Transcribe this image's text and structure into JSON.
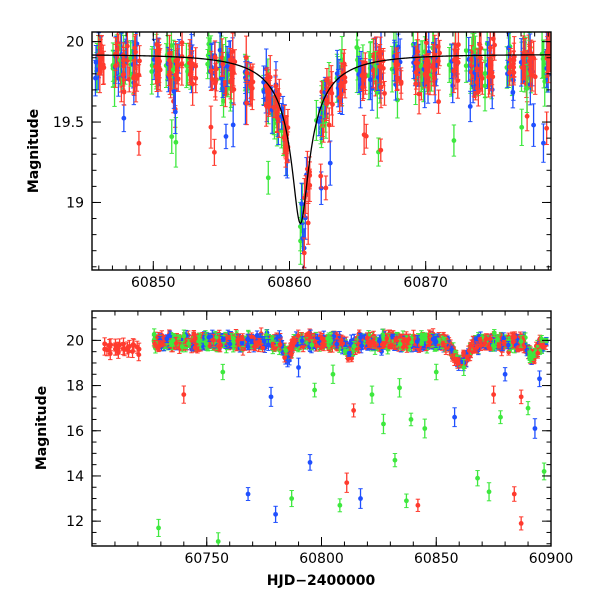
{
  "xlabel": "HJD−2400000",
  "colors": {
    "red": "#ff3a2e",
    "green": "#3ee83e",
    "blue": "#1f4fff",
    "curve": "#000000"
  },
  "chart_data": [
    {
      "type": "scatter",
      "ylabel": "Magnitude",
      "xlim": [
        60845.5,
        60879.2
      ],
      "ylim": [
        20.06,
        18.58
      ],
      "y_inverted": true,
      "xticks": [
        60850,
        60860,
        60870
      ],
      "yticks": [
        19,
        19.5,
        20
      ],
      "ytick_labels": [
        "19",
        "19.5",
        "20"
      ],
      "model_curve": {
        "t0": 60860.8,
        "base": 19.92,
        "amp": 1.05,
        "u0": 0.1,
        "tE": 6.0
      },
      "series": [
        {
          "color_key": "red"
        },
        {
          "color_key": "green"
        },
        {
          "color_key": "blue"
        }
      ]
    },
    {
      "type": "scatter",
      "ylabel": "Magnitude",
      "xlim": [
        60700,
        60900
      ],
      "ylim": [
        21.3,
        10.9
      ],
      "y_inverted": true,
      "xticks": [
        60750,
        60800,
        60850,
        60900
      ],
      "yticks": [
        12,
        14,
        16,
        18,
        20
      ],
      "outliers": [
        {
          "x": 60729,
          "y": 11.7,
          "c": "green"
        },
        {
          "x": 60755,
          "y": 11.1,
          "c": "green"
        },
        {
          "x": 60768,
          "y": 13.2,
          "c": "blue"
        },
        {
          "x": 60780,
          "y": 12.3,
          "c": "blue"
        },
        {
          "x": 60787,
          "y": 13.0,
          "c": "green"
        },
        {
          "x": 60795,
          "y": 14.6,
          "c": "blue"
        },
        {
          "x": 60808,
          "y": 12.7,
          "c": "green"
        },
        {
          "x": 60811,
          "y": 13.7,
          "c": "red"
        },
        {
          "x": 60817,
          "y": 13.0,
          "c": "blue"
        },
        {
          "x": 60837,
          "y": 12.9,
          "c": "green"
        },
        {
          "x": 60842,
          "y": 12.7,
          "c": "red"
        },
        {
          "x": 60832,
          "y": 14.7,
          "c": "green"
        },
        {
          "x": 60873,
          "y": 13.3,
          "c": "green"
        },
        {
          "x": 60868,
          "y": 13.9,
          "c": "green"
        },
        {
          "x": 60887,
          "y": 11.9,
          "c": "red"
        },
        {
          "x": 60884,
          "y": 13.2,
          "c": "red"
        },
        {
          "x": 60897,
          "y": 14.2,
          "c": "green"
        },
        {
          "x": 60893,
          "y": 16.1,
          "c": "blue"
        },
        {
          "x": 60845,
          "y": 16.1,
          "c": "green"
        },
        {
          "x": 60839,
          "y": 16.5,
          "c": "green"
        },
        {
          "x": 60858,
          "y": 16.6,
          "c": "blue"
        },
        {
          "x": 60827,
          "y": 16.3,
          "c": "green"
        },
        {
          "x": 60814,
          "y": 16.9,
          "c": "red"
        },
        {
          "x": 60878,
          "y": 16.6,
          "c": "green"
        },
        {
          "x": 60740,
          "y": 17.6,
          "c": "red"
        },
        {
          "x": 60778,
          "y": 17.5,
          "c": "blue"
        },
        {
          "x": 60797,
          "y": 17.8,
          "c": "green"
        },
        {
          "x": 60822,
          "y": 17.6,
          "c": "green"
        },
        {
          "x": 60834,
          "y": 17.9,
          "c": "green"
        },
        {
          "x": 60875,
          "y": 17.6,
          "c": "red"
        },
        {
          "x": 60887,
          "y": 17.5,
          "c": "red"
        },
        {
          "x": 60890,
          "y": 17.0,
          "c": "green"
        },
        {
          "x": 60757,
          "y": 18.6,
          "c": "green"
        },
        {
          "x": 60790,
          "y": 18.8,
          "c": "blue"
        },
        {
          "x": 60805,
          "y": 18.5,
          "c": "green"
        },
        {
          "x": 60850,
          "y": 18.6,
          "c": "green"
        },
        {
          "x": 60862,
          "y": 18.8,
          "c": "green"
        },
        {
          "x": 60880,
          "y": 18.5,
          "c": "blue"
        },
        {
          "x": 60895,
          "y": 18.3,
          "c": "blue"
        }
      ],
      "series": [
        {
          "color_key": "red"
        },
        {
          "color_key": "green"
        },
        {
          "color_key": "blue"
        }
      ]
    }
  ]
}
